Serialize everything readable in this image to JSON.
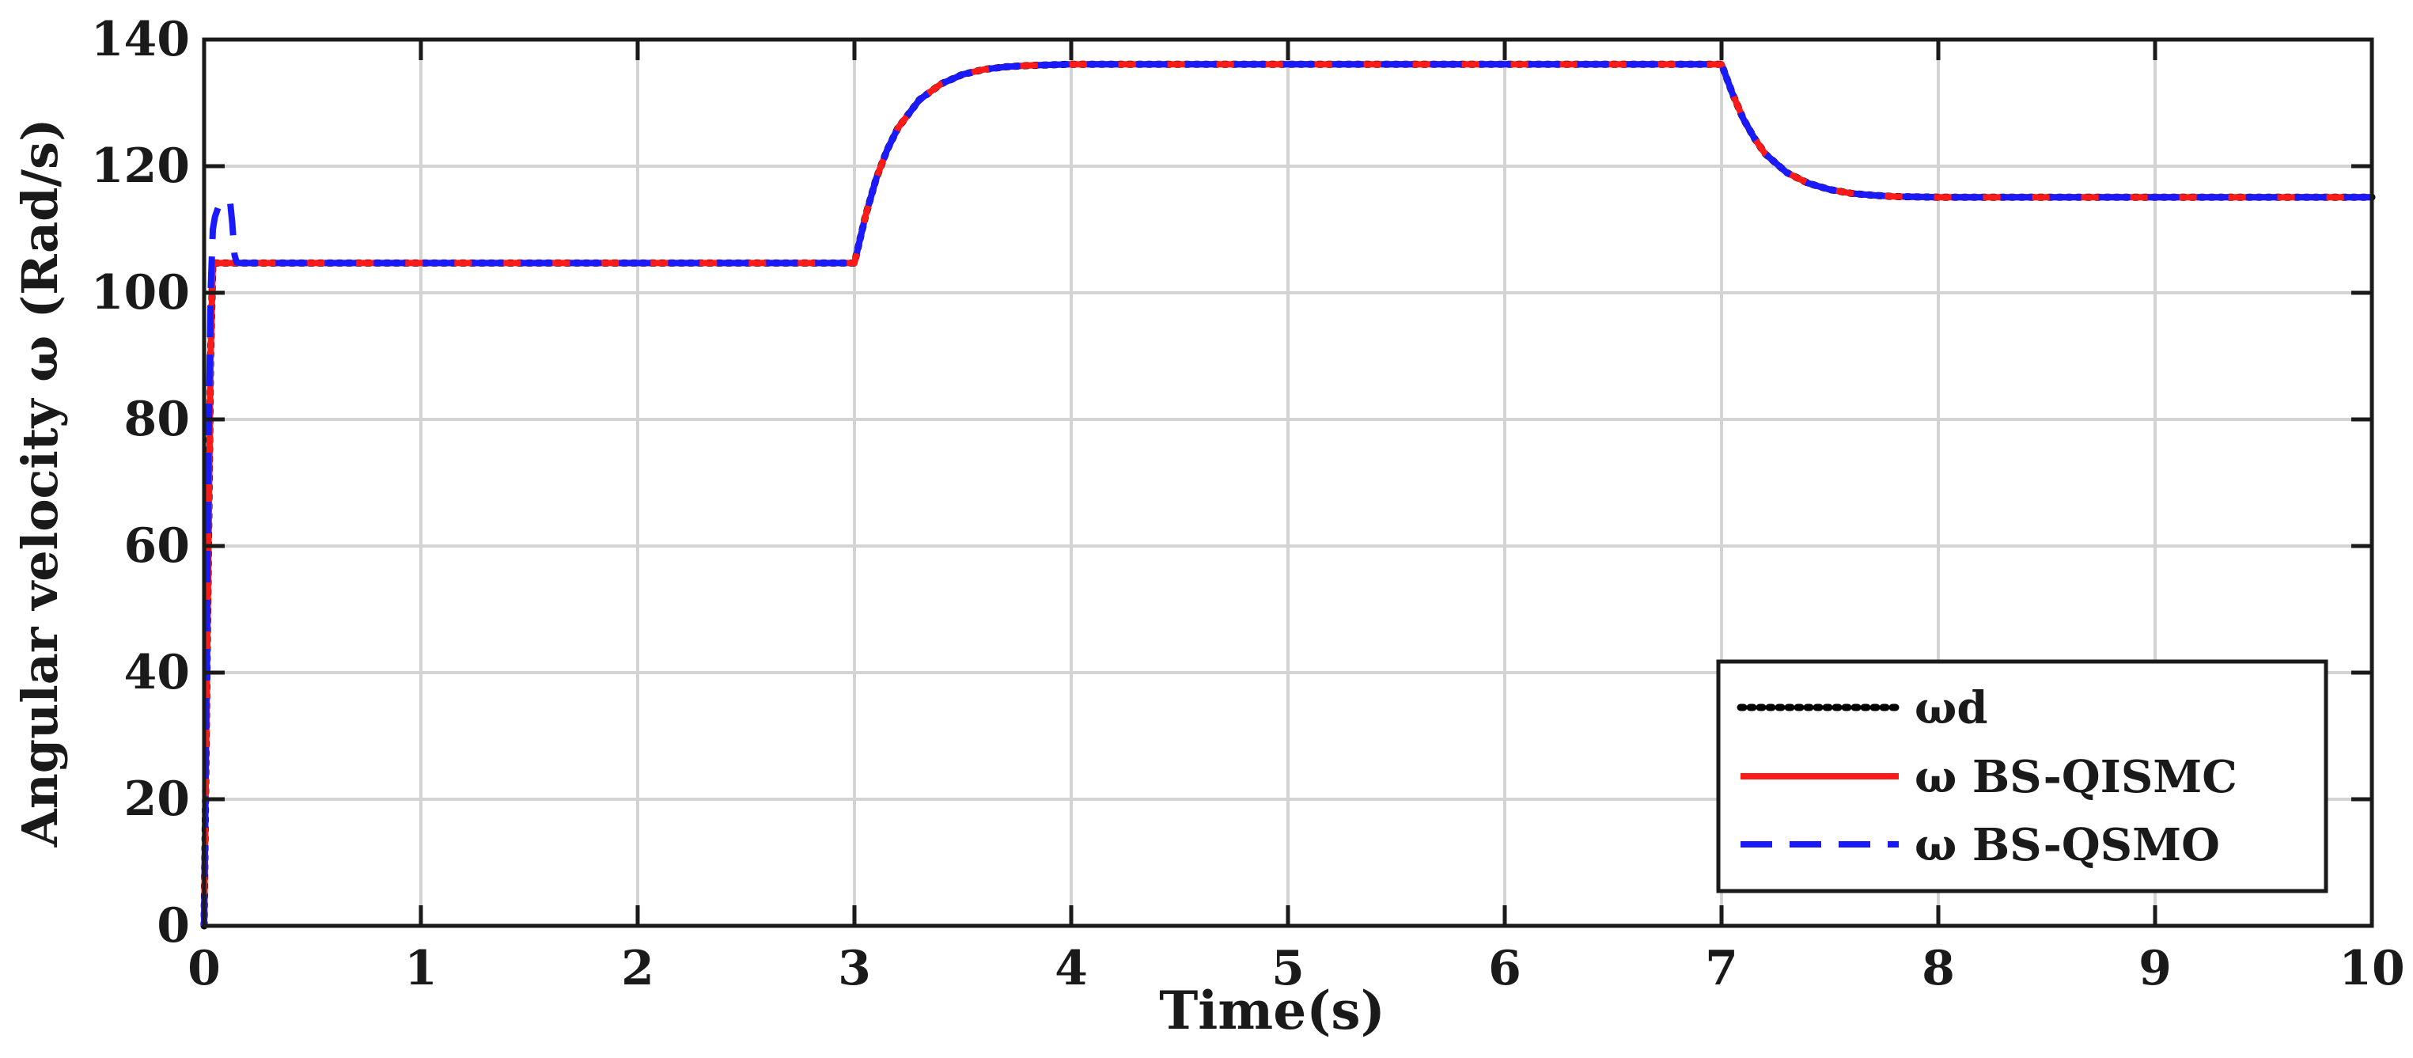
{
  "chart_data": {
    "type": "line",
    "xlabel": "Time(s)",
    "ylabel": "Angular velocity ω (Rad/s)",
    "xlim": [
      0,
      10
    ],
    "ylim": [
      0,
      140
    ],
    "xticks": [
      0,
      1,
      2,
      3,
      4,
      5,
      6,
      7,
      8,
      9,
      10
    ],
    "yticks": [
      0,
      20,
      40,
      60,
      80,
      100,
      120,
      140
    ],
    "grid": true,
    "legend_position": "bottom-right",
    "series": [
      {
        "name": "ωd",
        "color": "#000000",
        "style": "dotted",
        "x": [
          0,
          0.01,
          0.02,
          0.03,
          0.04,
          3.0,
          3.05,
          3.1,
          3.15,
          3.2,
          3.3,
          3.4,
          3.5,
          3.6,
          3.7,
          3.8,
          3.9,
          4.0,
          4.2,
          4.5,
          7.0,
          7.05,
          7.1,
          7.15,
          7.2,
          7.3,
          7.4,
          7.5,
          7.6,
          7.7,
          7.8,
          8.0,
          8.5,
          10
        ],
        "y": [
          0,
          30,
          60,
          90,
          104.7,
          104.7,
          112,
          118,
          122.5,
          126,
          130.5,
          133,
          134.5,
          135.3,
          135.7,
          135.9,
          136,
          136.1,
          136.1,
          136.1,
          136.1,
          131.5,
          127.5,
          124.5,
          122,
          119,
          117.3,
          116.3,
          115.7,
          115.4,
          115.2,
          115.1,
          115.1,
          115.1
        ]
      },
      {
        "name": "ω BS-QISMC",
        "color": "#ff1a1a",
        "style": "solid",
        "x": [
          0,
          0.01,
          0.02,
          0.03,
          0.04,
          3.0,
          3.05,
          3.1,
          3.15,
          3.2,
          3.3,
          3.4,
          3.5,
          3.6,
          3.7,
          3.8,
          3.9,
          4.0,
          4.2,
          4.5,
          7.0,
          7.05,
          7.1,
          7.15,
          7.2,
          7.3,
          7.4,
          7.5,
          7.6,
          7.7,
          7.8,
          8.0,
          8.5,
          10
        ],
        "y": [
          0,
          30,
          60,
          90,
          104.7,
          104.7,
          112,
          118,
          122.5,
          126,
          130.5,
          133,
          134.5,
          135.3,
          135.7,
          135.9,
          136,
          136.1,
          136.1,
          136.1,
          136.1,
          131.5,
          127.5,
          124.5,
          122,
          119,
          117.3,
          116.3,
          115.7,
          115.4,
          115.2,
          115.1,
          115.1,
          115.1
        ]
      },
      {
        "name": "ω BS-QSMO",
        "color": "#1a1aff",
        "style": "dashed",
        "x": [
          0,
          0.01,
          0.02,
          0.03,
          0.04,
          0.05,
          0.07,
          0.1,
          0.12,
          0.13,
          0.14,
          0.15,
          0.17,
          0.2,
          3.0,
          3.05,
          3.1,
          3.15,
          3.2,
          3.3,
          3.4,
          3.5,
          3.6,
          3.7,
          3.8,
          3.9,
          4.0,
          4.2,
          4.5,
          7.0,
          7.05,
          7.1,
          7.15,
          7.2,
          7.3,
          7.4,
          7.5,
          7.6,
          7.7,
          7.8,
          8.0,
          8.5,
          10
        ],
        "y": [
          0,
          35,
          75,
          100,
          110,
          112,
          114,
          114.5,
          114.3,
          111,
          106,
          104.8,
          104.7,
          104.7,
          104.7,
          112,
          118,
          122.5,
          126,
          130.5,
          133,
          134.5,
          135.3,
          135.7,
          135.9,
          136,
          136.1,
          136.1,
          136.1,
          136.1,
          131.5,
          127.5,
          124.5,
          122,
          119,
          117.3,
          116.3,
          115.7,
          115.4,
          115.2,
          115.1,
          115.1,
          115.1
        ]
      }
    ]
  }
}
